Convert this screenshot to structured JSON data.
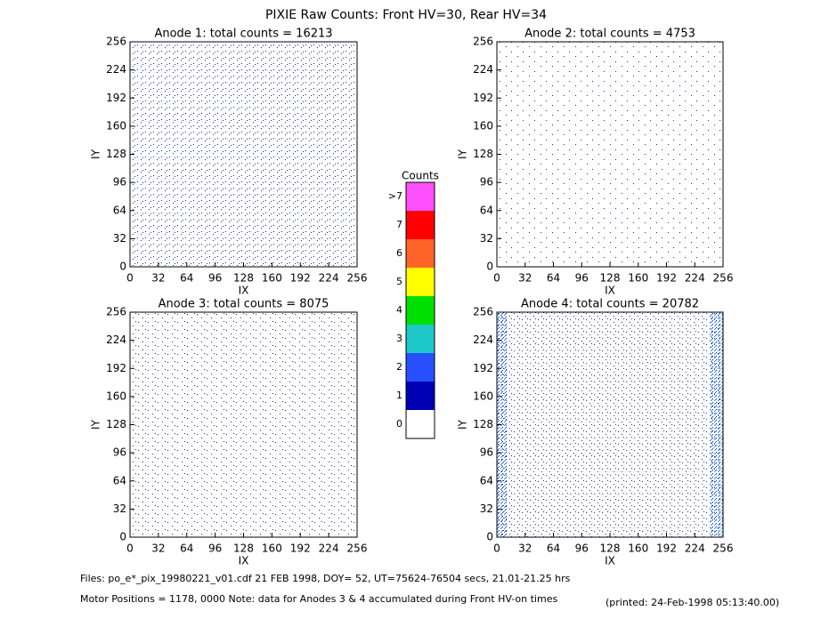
{
  "title": "PIXIE Raw Counts:  Front HV=30, Rear HV=34",
  "chart_data": [
    {
      "type": "heatmap",
      "title": "Anode 1: total counts = 16213",
      "xlabel": "IX",
      "ylabel": "IY",
      "xlim": [
        0,
        256
      ],
      "ylim": [
        0,
        256
      ],
      "xticks": [
        0,
        32,
        64,
        96,
        128,
        160,
        192,
        224,
        256
      ],
      "yticks": [
        0,
        32,
        64,
        96,
        128,
        160,
        192,
        224,
        256
      ]
    },
    {
      "type": "heatmap",
      "title": "Anode 2: total counts = 4753",
      "xlabel": "IX",
      "ylabel": "IY",
      "xlim": [
        0,
        256
      ],
      "ylim": [
        0,
        256
      ],
      "xticks": [
        0,
        32,
        64,
        96,
        128,
        160,
        192,
        224,
        256
      ],
      "yticks": [
        0,
        32,
        64,
        96,
        128,
        160,
        192,
        224,
        256
      ]
    },
    {
      "type": "heatmap",
      "title": "Anode 3: total counts = 8075",
      "xlabel": "IX",
      "ylabel": "IY",
      "xlim": [
        0,
        256
      ],
      "ylim": [
        0,
        256
      ],
      "xticks": [
        0,
        32,
        64,
        96,
        128,
        160,
        192,
        224,
        256
      ],
      "yticks": [
        0,
        32,
        64,
        96,
        128,
        160,
        192,
        224,
        256
      ]
    },
    {
      "type": "heatmap",
      "title": "Anode 4: total counts = 20782",
      "xlabel": "IX",
      "ylabel": "IY",
      "xlim": [
        0,
        256
      ],
      "ylim": [
        0,
        256
      ],
      "xticks": [
        0,
        32,
        64,
        96,
        128,
        160,
        192,
        224,
        256
      ],
      "yticks": [
        0,
        32,
        64,
        96,
        128,
        160,
        192,
        224,
        256
      ]
    }
  ],
  "colorbar": {
    "title": "Counts",
    "labels": [
      "0",
      "1",
      "2",
      "3",
      "4",
      "5",
      "6",
      "7",
      ">7"
    ],
    "colors": [
      "#ffffff",
      "#0000b4",
      "#2850ff",
      "#1ec8c8",
      "#00e000",
      "#ffff00",
      "#ff6428",
      "#ff0000",
      "#ff50ff"
    ]
  },
  "footer": {
    "files": "Files: po_e*_pix_19980221_v01.cdf    21 FEB 1998, DOY= 52, UT=75624-76504 secs, 21.01-21.25 hrs",
    "motor": "Motor Positions = 1178, 0000    Note: data for Anodes 3 & 4 accumulated during Front HV-on times",
    "printed": "(printed: 24-Feb-1998 05:13:40.00)"
  }
}
